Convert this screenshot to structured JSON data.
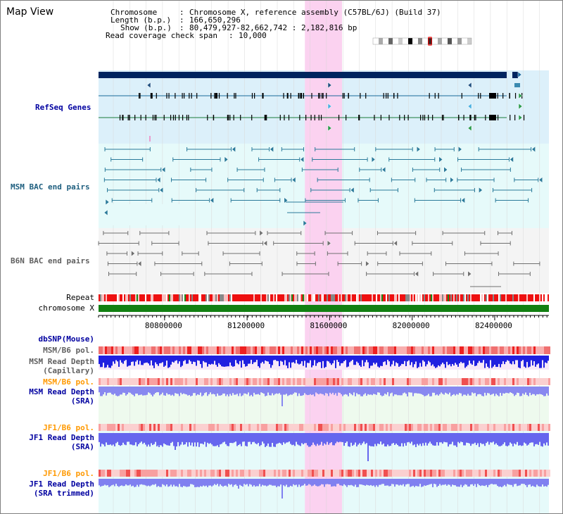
{
  "title": "Map View",
  "info": {
    "chromosome_label": "Chromosome",
    "chromosome_value": "Chromosome X, reference assembly (C57BL/6J) (Build 37)",
    "length_label": "Length (b.p.)",
    "length_value": "166,650,296",
    "show_label": "Show (b.p.)",
    "show_value": "80,479,927-82,662,742 : 2,182,816 bp",
    "coverage_label": "Read coverage check span",
    "coverage_value": "10,000"
  },
  "tracks": {
    "refseq": "RefSeq Genes",
    "msm_bac": "MSM BAC end pairs",
    "b6n_bac": "B6N BAC end pairs",
    "repeat": "Repeat",
    "chromosome": "chromosome X",
    "dbsnp": "dbSNP(Mouse)",
    "msm_b6_pol_1": "MSM/B6 pol.",
    "msm_depth_cap_1": "MSM Read Depth",
    "msm_depth_cap_2": "(Capillary)",
    "msm_b6_pol_2": "MSM/B6 pol.",
    "msm_depth_sra_1": "MSM Read Depth",
    "msm_depth_sra_2": "(SRA)",
    "jf1_b6_pol_1": "JF1/B6 pol.",
    "jf1_depth_sra_1": "JF1 Read Depth",
    "jf1_depth_sra_2": "(SRA)",
    "jf1_b6_pol_2": "JF1/B6 pol.",
    "jf1_depth_trim_1": "JF1 Read Depth",
    "jf1_depth_trim_2": "(SRA trimmed)"
  },
  "axis": {
    "ticks": [
      "80800000",
      "81200000",
      "81600000",
      "82000000",
      "82400000"
    ],
    "tick_bp": [
      80800000,
      81200000,
      81600000,
      82000000,
      82400000
    ],
    "view_start_bp": 80479927,
    "view_end_bp": 82662742
  },
  "highlight_bp": [
    81480000,
    81660000
  ],
  "colors": {
    "refseq_bg": "#dcf0fa",
    "bac_msm_bg": "#e6fafa",
    "bac_b6n_bg": "#f4f4f4",
    "highlight": "#fbd2f0",
    "chromosome_bar": "#128012",
    "gene_bar": "#00245f"
  }
}
